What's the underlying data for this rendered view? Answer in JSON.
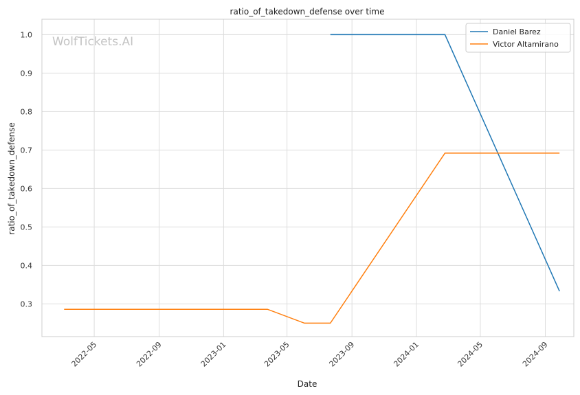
{
  "watermark": "WolfTickets.AI",
  "chart_data": {
    "type": "line",
    "title": "ratio_of_takedown_defense over time",
    "xlabel": "Date",
    "ylabel": "ratio_of_takedown_defense",
    "x_type": "date",
    "xlim": [
      "2022-01-22",
      "2024-10-25"
    ],
    "ylim": [
      0.215,
      1.04
    ],
    "x_ticks": [
      "2022-05-01",
      "2022-09-01",
      "2023-01-01",
      "2023-05-01",
      "2023-09-01",
      "2024-01-01",
      "2024-05-01",
      "2024-09-01"
    ],
    "x_tick_labels": [
      "2022-05",
      "2022-09",
      "2023-01",
      "2023-05",
      "2023-09",
      "2024-01",
      "2024-05",
      "2024-09"
    ],
    "y_ticks": [
      0.3,
      0.4,
      0.5,
      0.6,
      0.7,
      0.8,
      0.9,
      1.0
    ],
    "y_tick_labels": [
      "0.3",
      "0.4",
      "0.5",
      "0.6",
      "0.7",
      "0.8",
      "0.9",
      "1.0"
    ],
    "grid": true,
    "legend_position": "top-right",
    "series": [
      {
        "name": "Daniel Barez",
        "color": "#1f77b4",
        "x": [
          "2023-07-22",
          "2024-02-24",
          "2024-09-28"
        ],
        "y": [
          1.0,
          1.0,
          0.333
        ]
      },
      {
        "name": "Victor Altamirano",
        "color": "#ff7f0e",
        "x": [
          "2022-03-05",
          "2023-03-25",
          "2023-06-03",
          "2023-07-22",
          "2024-02-24",
          "2024-09-28"
        ],
        "y": [
          0.286,
          0.286,
          0.25,
          0.25,
          0.692,
          0.692
        ]
      }
    ]
  }
}
